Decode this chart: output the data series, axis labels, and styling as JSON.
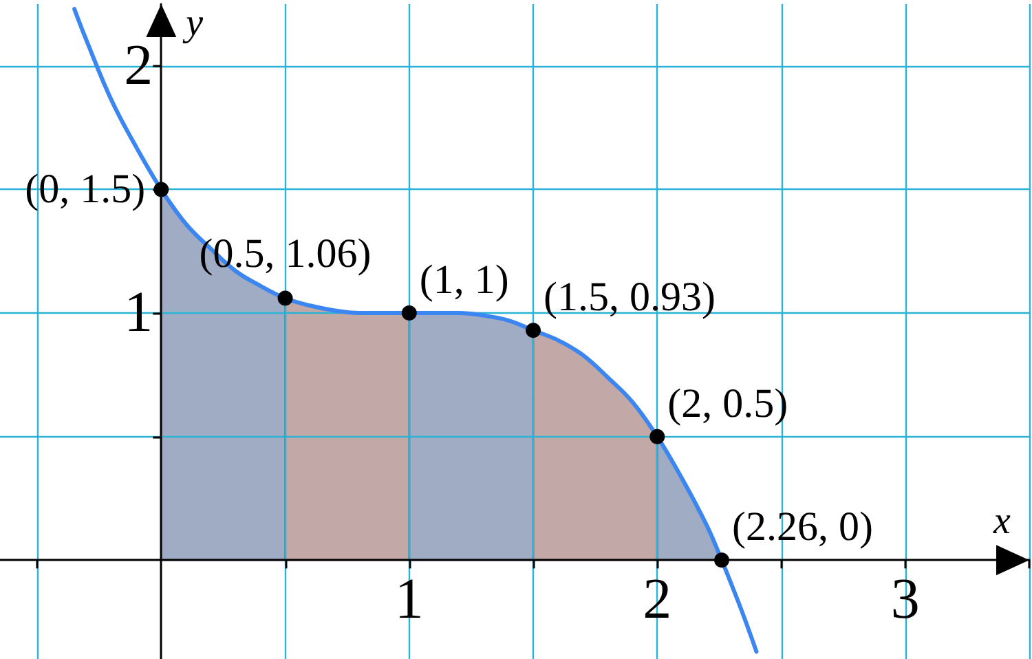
{
  "chart_data": {
    "type": "line",
    "xlabel": "x",
    "ylabel": "y",
    "xlim": [
      -0.65,
      3.5
    ],
    "ylim": [
      -0.4,
      2.25
    ],
    "xticks": [
      {
        "value": -0.5,
        "label": null
      },
      {
        "value": 0.5,
        "label": null
      },
      1,
      {
        "value": 1.5,
        "label": null
      },
      2,
      {
        "value": 2.5,
        "label": null
      },
      3,
      {
        "value": 3.5,
        "label": null
      }
    ],
    "yticks": [
      {
        "value": 0.5,
        "label": null
      },
      1,
      {
        "value": 1.5,
        "label": null
      },
      2
    ],
    "grid": true,
    "series": [
      {
        "type": "area",
        "color": "#a0abc4",
        "x": [
          0,
          0.1,
          0.2,
          0.3,
          0.4,
          0.5
        ],
        "values": [
          1.5,
          1.36,
          1.26,
          1.17,
          1.11,
          1.06
        ]
      },
      {
        "type": "area",
        "color": "#c2a9a8",
        "x": [
          0.5,
          0.6,
          0.7,
          0.8,
          0.9,
          1
        ],
        "values": [
          1.06,
          1.03,
          1.01,
          1,
          1,
          1
        ]
      },
      {
        "type": "area",
        "color": "#a0abc4",
        "x": [
          1,
          1.1,
          1.2,
          1.3,
          1.4,
          1.5
        ],
        "values": [
          1,
          1,
          1,
          0.99,
          0.97,
          0.93
        ]
      },
      {
        "type": "area",
        "color": "#c2a9a8",
        "x": [
          1.5,
          1.6,
          1.7,
          1.8,
          1.9,
          2
        ],
        "values": [
          0.93,
          0.89,
          0.83,
          0.74,
          0.64,
          0.5
        ]
      },
      {
        "type": "area",
        "color": "#a0abc4",
        "x": [
          2,
          2.1,
          2.2,
          2.26
        ],
        "values": [
          0.5,
          0.33,
          0.14,
          0
        ]
      },
      {
        "color": "#3b86f0",
        "x": [
          -0.35,
          -0.3,
          -0.2,
          -0.1,
          0,
          0.1,
          0.2,
          0.3,
          0.4,
          0.5,
          0.6,
          0.7,
          0.8,
          0.9,
          1,
          1.1,
          1.2,
          1.3,
          1.4,
          1.5,
          1.6,
          1.7,
          1.8,
          1.9,
          2,
          2.1,
          2.2,
          2.26,
          2.3,
          2.35,
          2.4
        ],
        "values": [
          2.23,
          2.1,
          1.86,
          1.67,
          1.5,
          1.36,
          1.26,
          1.17,
          1.11,
          1.06,
          1.03,
          1.01,
          1,
          1,
          1,
          1,
          1,
          0.99,
          0.97,
          0.93,
          0.89,
          0.83,
          0.74,
          0.64,
          0.5,
          0.33,
          0.14,
          0,
          -0.1,
          -0.23,
          -0.37
        ]
      },
      {
        "type": "scatter",
        "color": "#000000",
        "marker": "circle",
        "x": [
          0,
          0.5,
          1,
          1.5,
          2,
          2.26
        ],
        "values": [
          1.5,
          1.06,
          1,
          0.93,
          0.5,
          0
        ],
        "value_labels": [
          "(0, 1.5)",
          "(0.5, 1.06)",
          "(1, 1)",
          "(1.5, 0.93)",
          "(2, 0.5)",
          "(2.26, 0)"
        ]
      }
    ]
  }
}
